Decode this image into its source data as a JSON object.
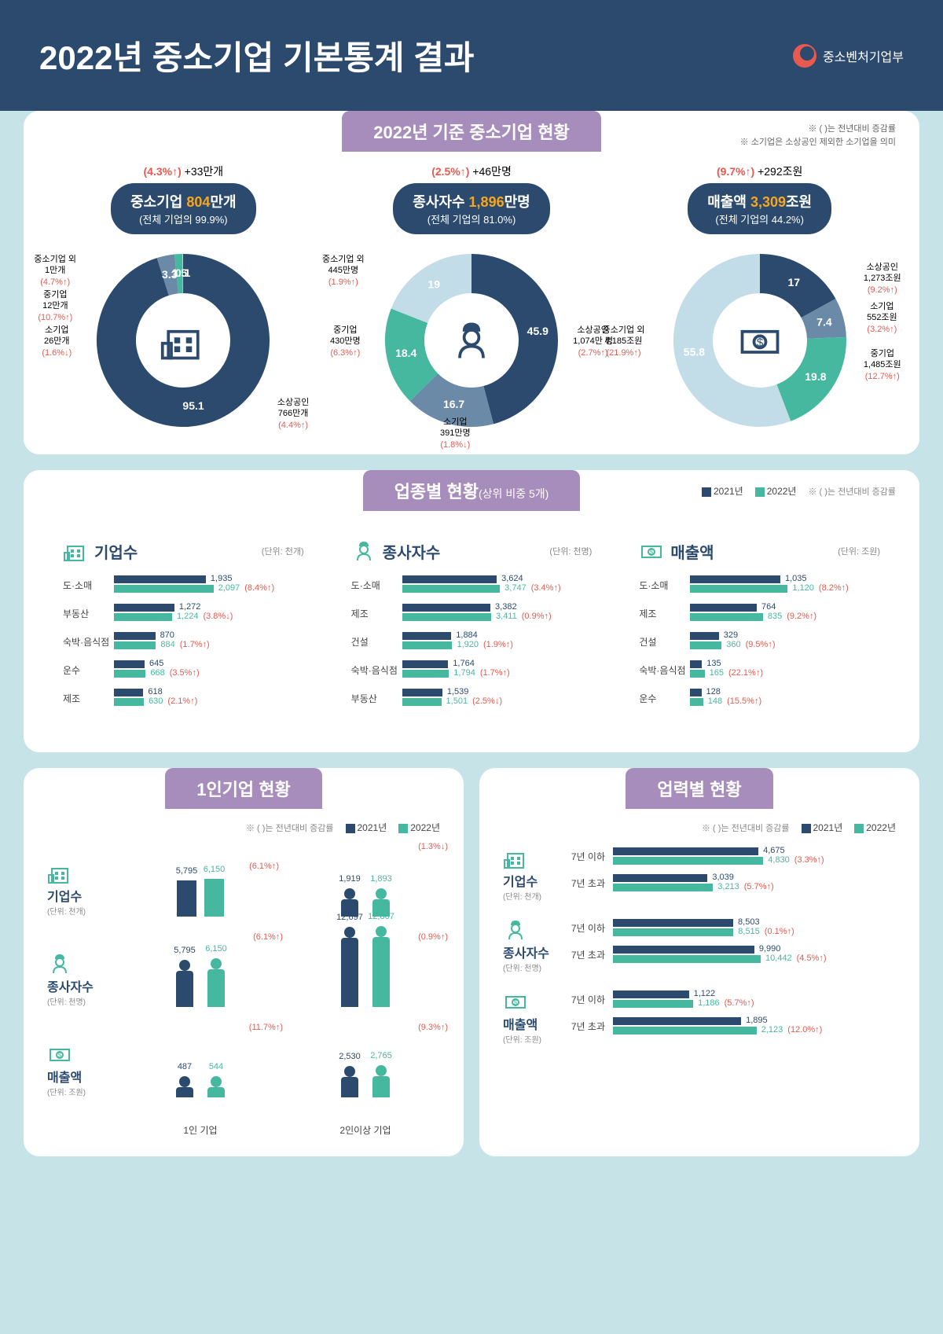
{
  "header": {
    "title": "2022년 중소기업 기본통계 결과",
    "org": "중소벤처기업부"
  },
  "colors": {
    "navy": "#2c4a6e",
    "teal": "#47b8a0",
    "violet": "#a68dbb",
    "orange": "#f5a623",
    "red": "#e85a4f",
    "bg": "#c6e4e8",
    "ice": "#c3dde8"
  },
  "section1": {
    "tab": "2022년 기준 중소기업 현황",
    "notes": [
      "※ ( )는 전년대비 증감률",
      "※ 소기업은 소상공인 제외한 소기업을 의미"
    ],
    "donuts": [
      {
        "top_pct": "(4.3%↑)",
        "top_abs": "+33만개",
        "pill1_a": "중소기업 ",
        "pill1_b": "804",
        "pill1_c": "만개",
        "pill2": "(전체 기업의 99.9%)",
        "slices": [
          {
            "label": "소상공인",
            "sub": "766만개",
            "chg": "(4.4%↑)",
            "val": 95.1,
            "color": "#2c4a6e"
          },
          {
            "label": "소기업",
            "sub": "26만개",
            "chg": "(1.6%↓)",
            "val": 3.3,
            "color": "#6b8aa8"
          },
          {
            "label": "중기업",
            "sub": "12만개",
            "chg": "(10.7%↑)",
            "val": 1.5,
            "color": "#47b8a0"
          },
          {
            "label": "중소기업 외",
            "sub": "1만개",
            "chg": "(4.7%↑)",
            "val": 0.1,
            "color": "#c3dde8"
          }
        ],
        "icon": "building"
      },
      {
        "top_pct": "(2.5%↑)",
        "top_abs": "+46만명",
        "pill1_a": "종사자수 ",
        "pill1_b": "1,896",
        "pill1_c": "만명",
        "pill2": "(전체 기업의 81.0%)",
        "slices": [
          {
            "label": "소상공인",
            "sub": "1,074만 명",
            "chg": "(2.7%↑)",
            "val": 45.9,
            "color": "#2c4a6e"
          },
          {
            "label": "소기업",
            "sub": "391만명",
            "chg": "(1.8%↓)",
            "val": 16.7,
            "color": "#6b8aa8"
          },
          {
            "label": "중기업",
            "sub": "430만명",
            "chg": "(6.3%↑)",
            "val": 18.4,
            "color": "#47b8a0"
          },
          {
            "label": "중소기업 외",
            "sub": "445만명",
            "chg": "(1.9%↑)",
            "val": 19.0,
            "color": "#c3dde8"
          }
        ],
        "icon": "worker"
      },
      {
        "top_pct": "(9.7%↑)",
        "top_abs": "+292조원",
        "pill1_a": "매출액 ",
        "pill1_b": "3,309",
        "pill1_c": "조원",
        "pill2": "(전체 기업의 44.2%)",
        "slices": [
          {
            "label": "소상공인",
            "sub": "1,273조원",
            "chg": "(9.2%↑)",
            "val": 17.0,
            "color": "#2c4a6e"
          },
          {
            "label": "소기업",
            "sub": "552조원",
            "chg": "(3.2%↑)",
            "val": 7.4,
            "color": "#6b8aa8"
          },
          {
            "label": "중기업",
            "sub": "1,485조원",
            "chg": "(12.7%↑)",
            "val": 19.8,
            "color": "#47b8a0"
          },
          {
            "label": "중소기업 외",
            "sub": "4,185조원",
            "chg": "(21.9%↑)",
            "val": 55.8,
            "color": "#c3dde8"
          }
        ],
        "icon": "money"
      }
    ]
  },
  "section2": {
    "tab": "업종별 현황",
    "tab_sub": "(상위 비중 5개)",
    "legend": {
      "y1": "2021년",
      "y2": "2022년",
      "note": "※ ( )는 전년대비 증감률"
    },
    "charts": [
      {
        "title": "기업수",
        "unit": "(단위: 천개)",
        "icon": "building",
        "max": 2200,
        "rows": [
          {
            "cat": "도·소매",
            "v1": 1935,
            "v2": 2097,
            "chg": "(8.4%↑)"
          },
          {
            "cat": "부동산",
            "v1": 1272,
            "v2": 1224,
            "chg": "(3.8%↓)"
          },
          {
            "cat": "숙박·음식점",
            "v1": 870,
            "v2": 884,
            "chg": "(1.7%↑)"
          },
          {
            "cat": "운수",
            "v1": 645,
            "v2": 668,
            "chg": "(3.5%↑)"
          },
          {
            "cat": "제조",
            "v1": 618,
            "v2": 630,
            "chg": "(2.1%↑)"
          }
        ]
      },
      {
        "title": "종사자수",
        "unit": "(단위: 천명)",
        "icon": "worker",
        "max": 4000,
        "rows": [
          {
            "cat": "도·소매",
            "v1": 3624,
            "v2": 3747,
            "chg": "(3.4%↑)"
          },
          {
            "cat": "제조",
            "v1": 3382,
            "v2": 3411,
            "chg": "(0.9%↑)"
          },
          {
            "cat": "건설",
            "v1": 1884,
            "v2": 1920,
            "chg": "(1.9%↑)"
          },
          {
            "cat": "숙박·음식점",
            "v1": 1764,
            "v2": 1794,
            "chg": "(1.7%↑)"
          },
          {
            "cat": "부동산",
            "v1": 1539,
            "v2": 1501,
            "chg": "(2.5%↓)"
          }
        ]
      },
      {
        "title": "매출액",
        "unit": "(단위: 조원)",
        "icon": "money",
        "max": 1200,
        "rows": [
          {
            "cat": "도·소매",
            "v1": 1035,
            "v2": 1120,
            "chg": "(8.2%↑)"
          },
          {
            "cat": "제조",
            "v1": 764,
            "v2": 835,
            "chg": "(9.2%↑)"
          },
          {
            "cat": "건설",
            "v1": 329,
            "v2": 360,
            "chg": "(9.5%↑)"
          },
          {
            "cat": "숙박·음식점",
            "v1": 135,
            "v2": 165,
            "chg": "(22.1%↑)"
          },
          {
            "cat": "운수",
            "v1": 128,
            "v2": 148,
            "chg": "(15.5%↑)"
          }
        ]
      }
    ]
  },
  "section3": {
    "tab": "1인기업 현황",
    "legend": {
      "y1": "2021년",
      "y2": "2022년",
      "note": "※ ( )는 전년대비 증감률"
    },
    "cols": [
      "1인 기업",
      "2인이상 기업"
    ],
    "rows": [
      {
        "label": "기업수",
        "unit": "(단위: 천개)",
        "icon": "building",
        "c1": {
          "v1": 5795,
          "v2": 6150,
          "chg": "(6.1%↑)"
        },
        "c2": {
          "v1": 1919,
          "v2": 1893,
          "chg": "(1.3%↓)"
        }
      },
      {
        "label": "종사자수",
        "unit": "(단위: 천명)",
        "icon": "worker",
        "c1": {
          "v1": 5795,
          "v2": 6150,
          "chg": "(6.1%↑)"
        },
        "c2": {
          "v1": 12697,
          "v2": 12807,
          "chg": "(0.9%↑)"
        }
      },
      {
        "label": "매출액",
        "unit": "(단위: 조원)",
        "icon": "money",
        "c1": {
          "v1": 487,
          "v2": 544,
          "chg": "(11.7%↑)"
        },
        "c2": {
          "v1": 2530,
          "v2": 2765,
          "chg": "(9.3%↑)"
        }
      }
    ]
  },
  "section4": {
    "tab": "업력별 현황",
    "legend": {
      "y1": "2021년",
      "y2": "2022년",
      "note": "※ ( )는 전년대비 증감률"
    },
    "groups": [
      {
        "label": "기업수",
        "unit": "(단위: 천개)",
        "icon": "building",
        "max": 5000,
        "rows": [
          {
            "cat": "7년 이하",
            "v1": 4675,
            "v2": 4830,
            "chg": "(3.3%↑)"
          },
          {
            "cat": "7년 초과",
            "v1": 3039,
            "v2": 3213,
            "chg": "(5.7%↑)"
          }
        ]
      },
      {
        "label": "종사자수",
        "unit": "(단위: 천명)",
        "icon": "worker",
        "max": 11000,
        "rows": [
          {
            "cat": "7년 이하",
            "v1": 8503,
            "v2": 8515,
            "chg": "(0.1%↑)"
          },
          {
            "cat": "7년 초과",
            "v1": 9990,
            "v2": 10442,
            "chg": "(4.5%↑)"
          }
        ]
      },
      {
        "label": "매출액",
        "unit": "(단위: 조원)",
        "icon": "money",
        "max": 2300,
        "rows": [
          {
            "cat": "7년 이하",
            "v1": 1122,
            "v2": 1186,
            "chg": "(5.7%↑)"
          },
          {
            "cat": "7년 초과",
            "v1": 1895,
            "v2": 2123,
            "chg": "(12.0%↑)"
          }
        ]
      }
    ]
  }
}
